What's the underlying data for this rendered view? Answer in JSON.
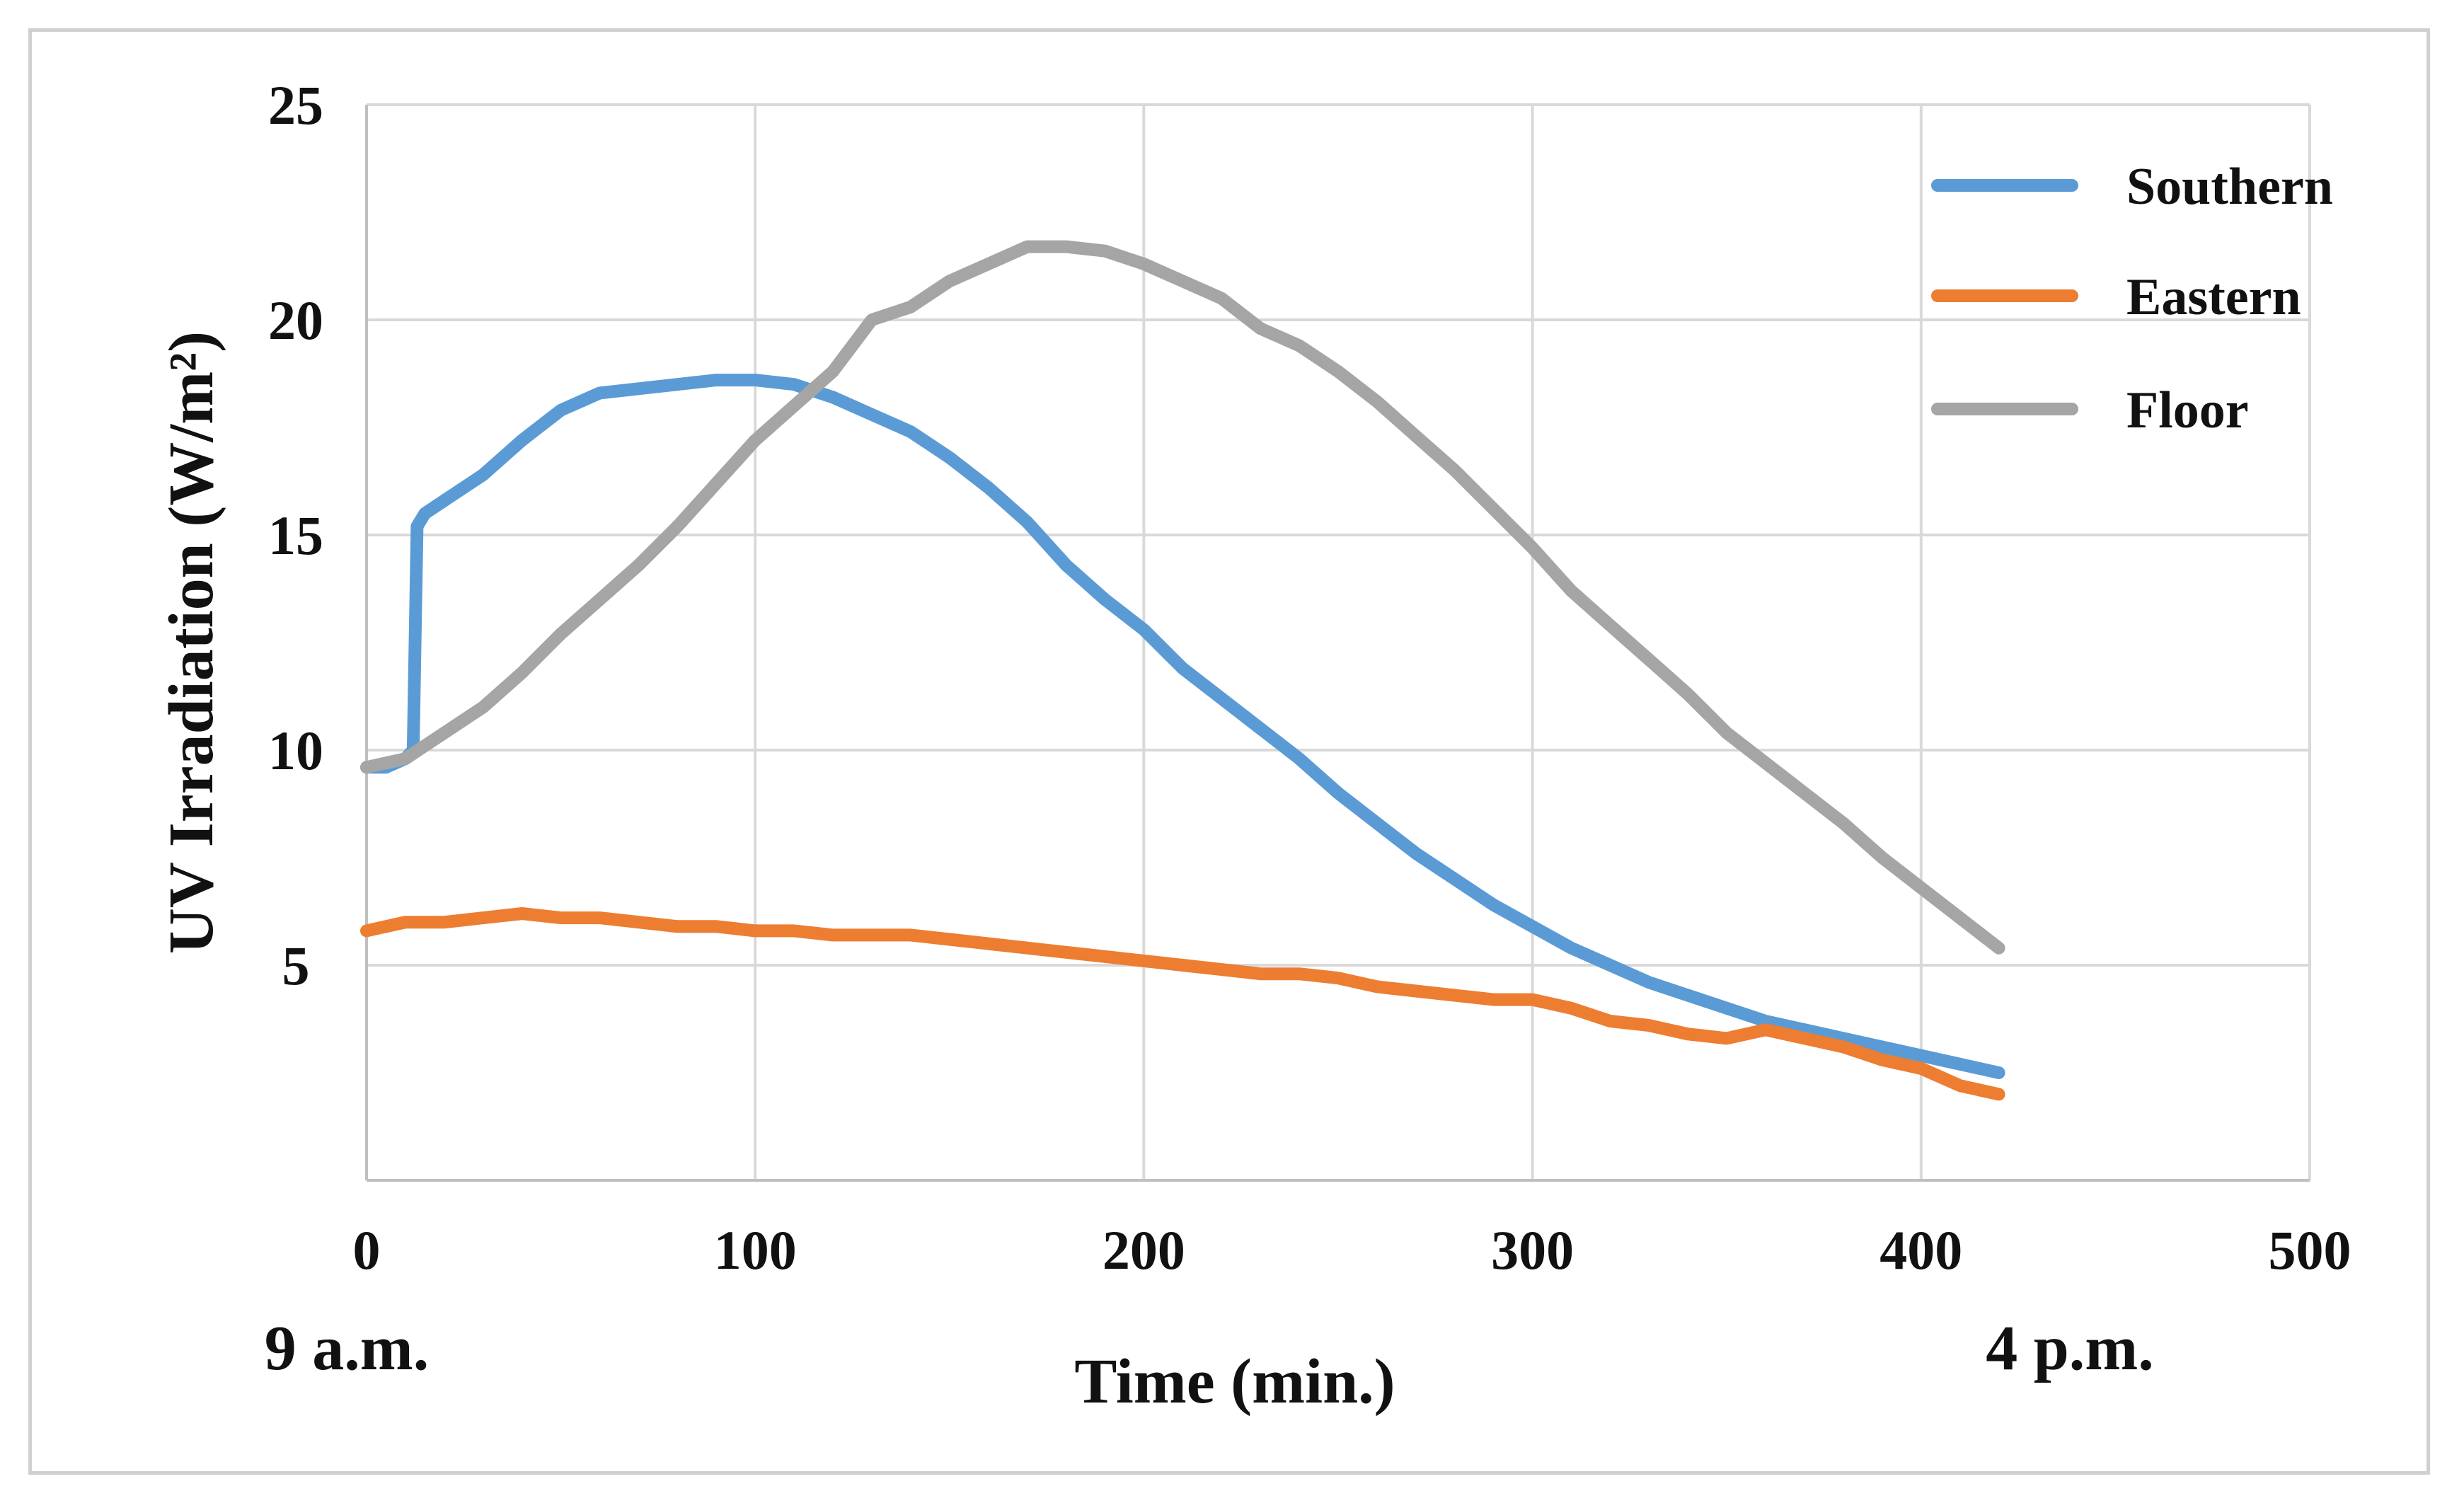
{
  "chart_data": {
    "type": "line",
    "xlabel": "Time (min.)",
    "ylabel": "UV Irradiation (W/m²)",
    "xlim": [
      0,
      500
    ],
    "ylim": [
      0,
      25
    ],
    "x_ticks": [
      0,
      100,
      200,
      300,
      400,
      500
    ],
    "y_ticks": [
      5,
      10,
      15,
      20,
      25
    ],
    "time_annotations": {
      "start": "9 a.m.",
      "end": "4 p.m."
    },
    "grid": true,
    "legend_position": "top-right",
    "series": [
      {
        "name": "Southern",
        "color": "#5B9BD5",
        "x": [
          0,
          5,
          10,
          12,
          13,
          15,
          20,
          30,
          40,
          50,
          60,
          70,
          80,
          90,
          100,
          110,
          120,
          130,
          140,
          150,
          160,
          170,
          180,
          190,
          200,
          210,
          220,
          230,
          240,
          250,
          260,
          270,
          280,
          290,
          300,
          310,
          320,
          330,
          340,
          350,
          360,
          370,
          380,
          390,
          400,
          410,
          420
        ],
        "y": [
          9.6,
          9.6,
          9.8,
          10.0,
          15.2,
          15.5,
          15.8,
          16.4,
          17.2,
          17.9,
          18.3,
          18.4,
          18.5,
          18.6,
          18.6,
          18.5,
          18.2,
          17.8,
          17.4,
          16.8,
          16.1,
          15.3,
          14.3,
          13.5,
          12.8,
          11.9,
          11.2,
          10.5,
          9.8,
          9.0,
          8.3,
          7.6,
          7.0,
          6.4,
          5.9,
          5.4,
          5.0,
          4.6,
          4.3,
          4.0,
          3.7,
          3.5,
          3.3,
          3.1,
          2.9,
          2.7,
          2.5
        ]
      },
      {
        "name": "Eastern",
        "color": "#ED7D31",
        "x": [
          0,
          10,
          20,
          30,
          40,
          50,
          60,
          70,
          80,
          90,
          100,
          110,
          120,
          130,
          140,
          150,
          160,
          170,
          180,
          190,
          200,
          210,
          220,
          230,
          240,
          250,
          260,
          270,
          280,
          290,
          300,
          310,
          320,
          330,
          340,
          350,
          360,
          370,
          380,
          390,
          400,
          410,
          420
        ],
        "y": [
          5.8,
          6.0,
          6.0,
          6.1,
          6.2,
          6.1,
          6.1,
          6.0,
          5.9,
          5.9,
          5.8,
          5.8,
          5.7,
          5.7,
          5.7,
          5.6,
          5.5,
          5.4,
          5.3,
          5.2,
          5.1,
          5.0,
          4.9,
          4.8,
          4.8,
          4.7,
          4.5,
          4.4,
          4.3,
          4.2,
          4.2,
          4.0,
          3.7,
          3.6,
          3.4,
          3.3,
          3.5,
          3.3,
          3.1,
          2.8,
          2.6,
          2.2,
          2.0
        ]
      },
      {
        "name": "Floor",
        "color": "#A5A5A5",
        "x": [
          0,
          10,
          15,
          20,
          30,
          40,
          50,
          60,
          70,
          80,
          90,
          100,
          110,
          120,
          130,
          140,
          150,
          160,
          170,
          180,
          190,
          200,
          210,
          220,
          230,
          240,
          250,
          260,
          270,
          280,
          290,
          300,
          310,
          320,
          330,
          340,
          350,
          360,
          370,
          380,
          390,
          400,
          410,
          420
        ],
        "y": [
          9.6,
          9.8,
          10.1,
          10.4,
          11.0,
          11.8,
          12.7,
          13.5,
          14.3,
          15.2,
          16.2,
          17.2,
          18.0,
          18.8,
          20.0,
          20.3,
          20.9,
          21.3,
          21.7,
          21.7,
          21.6,
          21.3,
          20.9,
          20.5,
          19.8,
          19.4,
          18.8,
          18.1,
          17.3,
          16.5,
          15.6,
          14.7,
          13.7,
          12.9,
          12.1,
          11.3,
          10.4,
          9.7,
          9.0,
          8.3,
          7.5,
          6.8,
          6.1,
          5.4
        ]
      }
    ]
  }
}
